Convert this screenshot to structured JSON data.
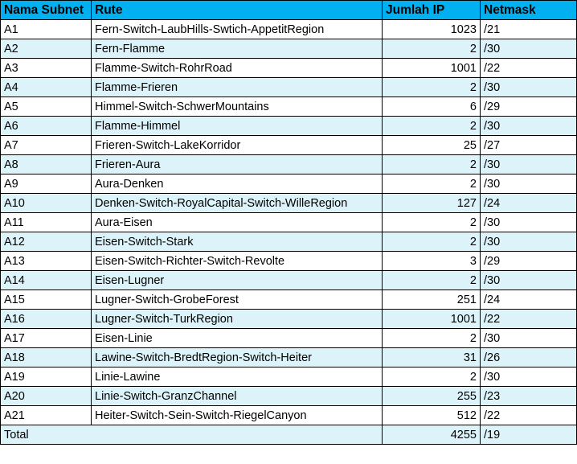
{
  "headers": {
    "subnet": "Nama Subnet",
    "route": "Rute",
    "ip_count": "Jumlah IP",
    "netmask": "Netmask"
  },
  "rows": [
    {
      "subnet": "A1",
      "route": "Fern-Switch-LaubHills-Swtich-AppetitRegion",
      "ip_count": "1023",
      "netmask": "/21"
    },
    {
      "subnet": "A2",
      "route": "Fern-Flamme",
      "ip_count": "2",
      "netmask": "/30"
    },
    {
      "subnet": "A3",
      "route": "Flamme-Switch-RohrRoad",
      "ip_count": "1001",
      "netmask": "/22"
    },
    {
      "subnet": "A4",
      "route": "Flamme-Frieren",
      "ip_count": "2",
      "netmask": "/30"
    },
    {
      "subnet": "A5",
      "route": "Himmel-Switch-SchwerMountains",
      "ip_count": "6",
      "netmask": "/29"
    },
    {
      "subnet": "A6",
      "route": "Flamme-Himmel",
      "ip_count": "2",
      "netmask": "/30"
    },
    {
      "subnet": "A7",
      "route": "Frieren-Switch-LakeKorridor",
      "ip_count": "25",
      "netmask": "/27"
    },
    {
      "subnet": "A8",
      "route": "Frieren-Aura",
      "ip_count": "2",
      "netmask": "/30"
    },
    {
      "subnet": "A9",
      "route": "Aura-Denken",
      "ip_count": "2",
      "netmask": "/30"
    },
    {
      "subnet": "A10",
      "route": "Denken-Switch-RoyalCapital-Switch-WilleRegion",
      "ip_count": "127",
      "netmask": "/24"
    },
    {
      "subnet": "A11",
      "route": "Aura-Eisen",
      "ip_count": "2",
      "netmask": "/30"
    },
    {
      "subnet": "A12",
      "route": "Eisen-Switch-Stark",
      "ip_count": "2",
      "netmask": "/30"
    },
    {
      "subnet": "A13",
      "route": "Eisen-Switch-Richter-Switch-Revolte",
      "ip_count": "3",
      "netmask": "/29"
    },
    {
      "subnet": "A14",
      "route": "Eisen-Lugner",
      "ip_count": "2",
      "netmask": "/30"
    },
    {
      "subnet": "A15",
      "route": "Lugner-Switch-GrobeForest",
      "ip_count": "251",
      "netmask": "/24"
    },
    {
      "subnet": "A16",
      "route": "Lugner-Switch-TurkRegion",
      "ip_count": "1001",
      "netmask": "/22"
    },
    {
      "subnet": "A17",
      "route": "Eisen-Linie",
      "ip_count": "2",
      "netmask": "/30"
    },
    {
      "subnet": "A18",
      "route": "Lawine-Switch-BredtRegion-Switch-Heiter",
      "ip_count": "31",
      "netmask": "/26"
    },
    {
      "subnet": "A19",
      "route": "Linie-Lawine",
      "ip_count": "2",
      "netmask": "/30"
    },
    {
      "subnet": "A20",
      "route": "Linie-Switch-GranzChannel",
      "ip_count": "255",
      "netmask": "/23"
    },
    {
      "subnet": "A21",
      "route": "Heiter-Switch-Sein-Switch-RiegelCanyon",
      "ip_count": "512",
      "netmask": "/22"
    }
  ],
  "total": {
    "label": "Total",
    "ip_count": "4255",
    "netmask": "/19"
  },
  "colors": {
    "header_bg": "#00b0f0",
    "stripe_bg": "#dbf3f9",
    "grid_line": "#000000"
  }
}
